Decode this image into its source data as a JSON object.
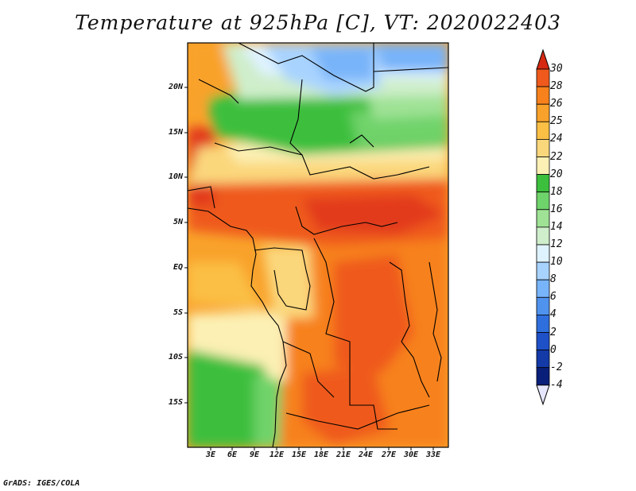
{
  "title": "Temperature at 925hPa [C], VT: 2020022403",
  "credit": "GrADS: IGES/COLA",
  "map": {
    "y_ticks": [
      "20N",
      "15N",
      "10N",
      "5N",
      "EQ",
      "5S",
      "10S",
      "15S"
    ],
    "x_ticks": [
      "3E",
      "6E",
      "9E",
      "12E",
      "15E",
      "18E",
      "21E",
      "24E",
      "27E",
      "30E",
      "33E"
    ]
  },
  "colorbar": {
    "labels": [
      "30",
      "28",
      "26",
      "25",
      "24",
      "22",
      "20",
      "18",
      "16",
      "14",
      "12",
      "10",
      "8",
      "6",
      "4",
      "2",
      "0",
      "-2",
      "-4"
    ],
    "colors": [
      "#e23a1e",
      "#ef5a1c",
      "#f7811c",
      "#f9a22b",
      "#fbbf45",
      "#fbd77c",
      "#fcf0b4",
      "#3cbf3c",
      "#6fd36b",
      "#9fe295",
      "#cfeecb",
      "#dff3ff",
      "#a8d3ff",
      "#78b4f9",
      "#4f93ee",
      "#2f6fdd",
      "#1e50c8",
      "#143aa8",
      "#0a1f7a"
    ],
    "top_arrow": "#d62a12",
    "bottom_arrow": "#e6e6ff"
  }
}
